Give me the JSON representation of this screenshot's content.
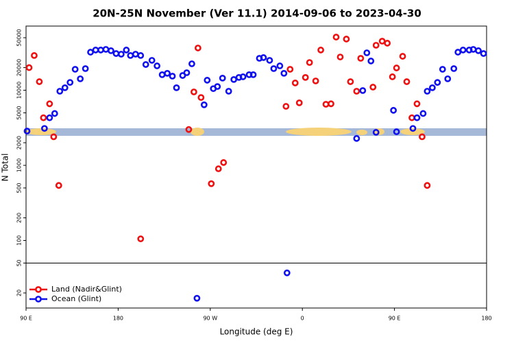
{
  "chart_data": {
    "type": "scatter",
    "title": "20N-25N November (Ver 11.1)   2014-09-06 to 2023-04-30",
    "x_label": "Longitude (deg E)",
    "y_label": "N Total",
    "xlim": [
      90,
      540
    ],
    "ylim": [
      12.6,
      71500
    ],
    "log_y": true,
    "legend": "bottom-left",
    "xticks": [
      {
        "value": 90,
        "label": "90 E"
      },
      180,
      {
        "value": 270,
        "label": "90 W"
      },
      {
        "value": 360,
        "label": "0"
      },
      {
        "value": 450,
        "label": "90 E"
      },
      {
        "value": 540,
        "label": "180"
      }
    ],
    "yticks": [
      20,
      50,
      100,
      200,
      500,
      1000,
      2000,
      5000,
      10000,
      20000,
      50000
    ],
    "hlines": [
      50
    ],
    "series": [
      {
        "name": "Land (Nadir&Glint)",
        "color": "#ee1111",
        "x": [
          93,
          98,
          103,
          107,
          113,
          117,
          122,
          202,
          249,
          254,
          258,
          261,
          271,
          278,
          283,
          344,
          348,
          353,
          357,
          363,
          367,
          373,
          378,
          383,
          388,
          393,
          397,
          403,
          407,
          413,
          417,
          429,
          432,
          438,
          443,
          448,
          452,
          458,
          462,
          467,
          472,
          477,
          482
        ],
        "values": [
          20000,
          29000,
          13000,
          4300,
          6600,
          2400,
          540,
          105,
          3000,
          9500,
          36500,
          8000,
          570,
          900,
          1090,
          6100,
          19000,
          12500,
          6800,
          14800,
          23400,
          13300,
          34300,
          6500,
          6600,
          51000,
          27700,
          48000,
          13000,
          9700,
          26600,
          11000,
          39700,
          45000,
          42300,
          15100,
          19800,
          28300,
          13000,
          4300,
          6600,
          2400,
          540
        ]
      },
      {
        "name": "Ocean (Glint)",
        "color": "#1111ee",
        "x": [
          91,
          108,
          113,
          118,
          123,
          128,
          133,
          138,
          143,
          148,
          153,
          158,
          163,
          168,
          173,
          178,
          183,
          188,
          192,
          197,
          202,
          207,
          213,
          218,
          223,
          228,
          233,
          237,
          243,
          247,
          252,
          257,
          264,
          267,
          273,
          277,
          282,
          288,
          293,
          298,
          302,
          308,
          312,
          318,
          322,
          328,
          332,
          338,
          342,
          345,
          413,
          419,
          423,
          427,
          432,
          449,
          452,
          468,
          472,
          478,
          482,
          487,
          492,
          497,
          502,
          508,
          512,
          517,
          523,
          527,
          532,
          537
        ],
        "values": [
          2860,
          3100,
          4300,
          4900,
          9700,
          10800,
          12700,
          19000,
          14200,
          19400,
          32100,
          34300,
          34300,
          35000,
          33600,
          30800,
          30200,
          34300,
          29000,
          30200,
          29000,
          22000,
          25000,
          21100,
          16100,
          16800,
          15400,
          10800,
          15700,
          17100,
          22500,
          17,
          6400,
          13600,
          10500,
          11200,
          14500,
          9700,
          13900,
          14800,
          15100,
          16100,
          16100,
          26600,
          27200,
          25000,
          19400,
          21100,
          16800,
          37,
          2280,
          9900,
          31500,
          24500,
          2750,
          5400,
          2800,
          3100,
          4300,
          4900,
          9700,
          10800,
          12700,
          19000,
          14200,
          19400,
          32100,
          34300,
          34300,
          35000,
          33600,
          30800
        ]
      }
    ]
  }
}
